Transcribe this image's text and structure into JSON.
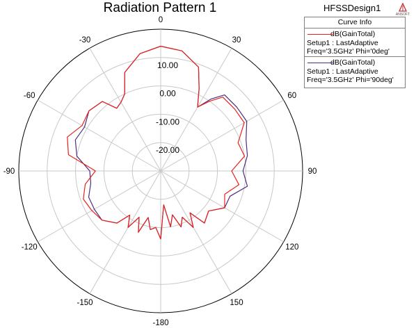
{
  "header": {
    "title": "Radiation Pattern 1",
    "design_name": "HFSSDesign1",
    "logo_text": "ANSOFT"
  },
  "legend": {
    "title": "Curve Info"
  },
  "colors": {
    "series_0": "#e8221b",
    "series_90": "#4b2d7f",
    "grid": "#c8c8c8",
    "outer": "#000000"
  },
  "chart_data": {
    "type": "polar",
    "title": "Radiation Pattern 1",
    "angle_ticks": [
      "0",
      "30",
      "60",
      "90",
      "120",
      "150",
      "-180",
      "-150",
      "-120",
      "-90",
      "-60",
      "-30"
    ],
    "radial_ticks": [
      "10.00",
      "0.00",
      "-10.00",
      "-20.00"
    ],
    "radial_range": [
      -30,
      20
    ],
    "angular_unit": "deg",
    "series": [
      {
        "name": "dB(GainTotal)",
        "setup": "Setup1 : LastAdaptive",
        "params": "Freq='3.5GHz' Phi='0deg'",
        "theta": [
          0,
          10,
          20,
          25,
          30,
          35,
          40,
          50,
          60,
          70,
          80,
          90,
          100,
          110,
          120,
          130,
          140,
          145,
          150,
          155,
          160,
          165,
          170,
          175,
          180,
          185,
          190,
          195,
          200,
          205,
          210,
          215,
          220,
          230,
          240,
          250,
          260,
          270,
          280,
          290,
          300,
          310,
          320,
          325,
          330,
          335,
          340,
          350
        ],
        "gain": [
          14,
          13,
          9,
          2,
          -4,
          0,
          4,
          4,
          4,
          -1,
          0,
          -5,
          -2,
          -6,
          -4,
          -8,
          -6,
          -12,
          -7,
          -12,
          -9,
          -14,
          -10,
          -18,
          -6,
          -10,
          -9,
          -13,
          -7,
          -12,
          -7,
          -11,
          -6,
          -3,
          -2,
          -1,
          -3,
          -7,
          3,
          5,
          2,
          3,
          2,
          -3,
          -2,
          0,
          7,
          12
        ]
      },
      {
        "name": "dB(GainTotal)",
        "setup": "Setup1 : LastAdaptive",
        "params": "Freq='3.5GHz' Phi='90deg'",
        "theta": [
          0,
          10,
          20,
          25,
          30,
          35,
          40,
          50,
          60,
          70,
          80,
          90,
          100,
          110,
          120,
          130,
          140,
          145,
          150,
          155,
          160,
          165,
          170,
          175,
          180,
          185,
          190,
          195,
          200,
          205,
          210,
          215,
          220,
          230,
          240,
          250,
          260,
          270,
          280,
          290,
          300,
          310,
          320,
          325,
          330,
          335,
          340,
          350
        ],
        "gain": [
          14,
          13,
          9,
          2,
          -4,
          1,
          5,
          5,
          5,
          2,
          1,
          -1,
          1,
          -4,
          -4,
          -8,
          -6,
          -12,
          -7,
          -12,
          -9,
          -14,
          -10,
          -18,
          -6,
          -10,
          -9,
          -13,
          -7,
          -12,
          -7,
          -11,
          -6,
          -3,
          -3,
          -3,
          -5,
          -5,
          0,
          2,
          1,
          3,
          2,
          -3,
          -2,
          0,
          7,
          12
        ]
      }
    ]
  }
}
